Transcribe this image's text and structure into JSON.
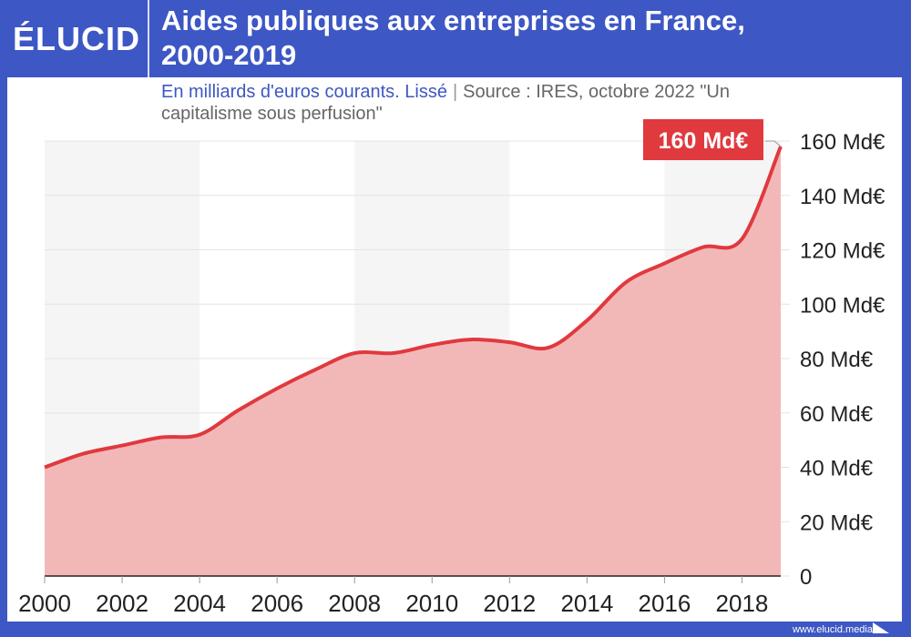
{
  "header": {
    "logo": "ÉLUCID",
    "title_line1": "Aides publiques aux entreprises en France,",
    "title_line2": "2000-2019"
  },
  "subtitle": {
    "unit": "En milliards d'euros courants. Lissé",
    "separator": "|",
    "source": "Source : IRES, octobre 2022 \"Un capitalisme sous perfusion\""
  },
  "footer": {
    "url": "www.elucid.media"
  },
  "colors": {
    "brand": "#3d57c4",
    "line": "#e0393e",
    "fill": "#f2b8b8",
    "band": "#f5f5f5"
  },
  "chart_data": {
    "type": "area",
    "title": "Aides publiques aux entreprises en France, 2000-2019",
    "x": [
      2000,
      2001,
      2002,
      2003,
      2004,
      2005,
      2006,
      2007,
      2008,
      2009,
      2010,
      2011,
      2012,
      2013,
      2014,
      2015,
      2016,
      2017,
      2018,
      2019
    ],
    "values": [
      40,
      45,
      48,
      51,
      52,
      61,
      69,
      76,
      82,
      82,
      85,
      87,
      86,
      84,
      94,
      108,
      115,
      121,
      124,
      158
    ],
    "xlim": [
      2000,
      2019
    ],
    "ylim": [
      0,
      160
    ],
    "xticks": [
      "2000",
      "2002",
      "2004",
      "2006",
      "2008",
      "2010",
      "2012",
      "2014",
      "2016",
      "2018"
    ],
    "yticks": [
      "0",
      "20 Md€",
      "40 Md€",
      "60 Md€",
      "80 Md€",
      "100 Md€",
      "120 Md€",
      "140 Md€",
      "160 Md€"
    ],
    "annotation": "160 Md€",
    "grid": true,
    "y_axis_side": "right"
  }
}
